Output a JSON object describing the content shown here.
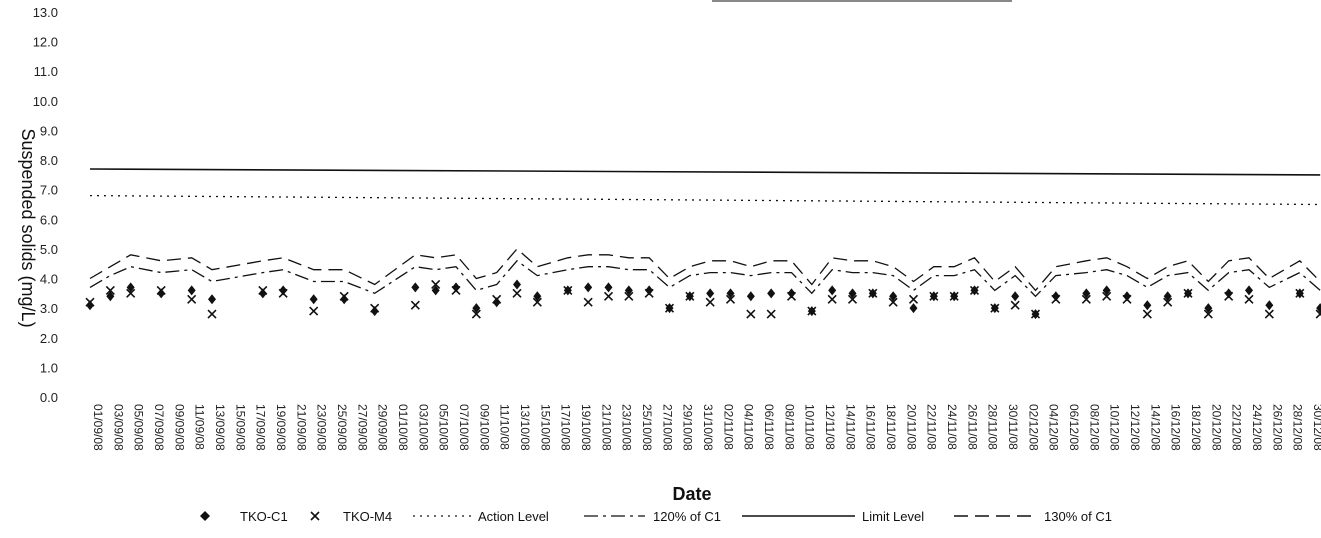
{
  "chart_data": {
    "type": "scatter",
    "xlabel": "Date",
    "ylabel": "Suspended solids (mg/L)",
    "ylim": [
      0,
      13
    ],
    "yticks": [
      "0.0",
      "1.0",
      "2.0",
      "3.0",
      "4.0",
      "5.0",
      "6.0",
      "7.0",
      "8.0",
      "9.0",
      "10.0",
      "11.0",
      "12.0",
      "13.0"
    ],
    "categories": [
      "01/09/08",
      "03/09/08",
      "05/09/08",
      "07/09/08",
      "09/09/08",
      "11/09/08",
      "13/09/08",
      "15/09/08",
      "17/09/08",
      "19/09/08",
      "21/09/08",
      "23/09/08",
      "25/09/08",
      "27/09/08",
      "29/09/08",
      "01/10/08",
      "03/10/08",
      "05/10/08",
      "07/10/08",
      "09/10/08",
      "11/10/08",
      "13/10/08",
      "15/10/08",
      "17/10/08",
      "19/10/08",
      "21/10/08",
      "23/10/08",
      "25/10/08",
      "27/10/08",
      "29/10/08",
      "31/10/08",
      "02/11/08",
      "04/11/08",
      "06/11/08",
      "08/11/08",
      "10/11/08",
      "12/11/08",
      "14/11/08",
      "16/11/08",
      "18/11/08",
      "20/11/08",
      "22/11/08",
      "24/11/08",
      "26/11/08",
      "28/11/08",
      "30/11/08",
      "02/12/08",
      "04/12/08",
      "06/12/08",
      "08/12/08",
      "10/12/08",
      "12/12/08",
      "14/12/08",
      "16/12/08",
      "18/12/08",
      "20/12/08",
      "22/12/08",
      "24/12/08",
      "26/12/08",
      "28/12/08",
      "30/12/08"
    ],
    "grid": false,
    "legend_position": "bottom",
    "legend": [
      "TKO-C1",
      "TKO-M4",
      "Action Level",
      "120% of C1",
      "Limit Level",
      "130% of C1"
    ],
    "series": [
      {
        "name": "TKO-C1",
        "marker": "diamond",
        "x": [
          0,
          1,
          2,
          3.5,
          5,
          6,
          8.5,
          9.5,
          11,
          12.5,
          14,
          16,
          17,
          18,
          19,
          20,
          21,
          22,
          23.5,
          24.5,
          25.5,
          26.5,
          27.5,
          28.5,
          29.5,
          30.5,
          31.5,
          32.5,
          33.5,
          34.5,
          35.5,
          36.5,
          37.5,
          38.5,
          39.5,
          40.5,
          41.5,
          42.5,
          43.5,
          44.5,
          45.5,
          46.5,
          47.5,
          49,
          50,
          51,
          52,
          53,
          54,
          55,
          56,
          57,
          58,
          59.5,
          60.5
        ],
        "values": [
          3.1,
          3.4,
          3.7,
          3.5,
          3.6,
          3.3,
          3.5,
          3.6,
          3.3,
          3.3,
          2.9,
          3.7,
          3.6,
          3.7,
          3.0,
          3.2,
          3.8,
          3.4,
          3.6,
          3.7,
          3.7,
          3.6,
          3.6,
          3.0,
          3.4,
          3.5,
          3.5,
          3.4,
          3.5,
          3.5,
          2.9,
          3.6,
          3.5,
          3.5,
          3.4,
          3.0,
          3.4,
          3.4,
          3.6,
          3.0,
          3.4,
          2.8,
          3.4,
          3.5,
          3.6,
          3.4,
          3.1,
          3.4,
          3.5,
          3.0,
          3.5,
          3.6,
          3.1,
          3.5,
          3.0
        ]
      },
      {
        "name": "TKO-M4",
        "marker": "x",
        "x": [
          0,
          1,
          2,
          3.5,
          5,
          6,
          8.5,
          9.5,
          11,
          12.5,
          14,
          16,
          17,
          18,
          19,
          20,
          21,
          22,
          23.5,
          24.5,
          25.5,
          26.5,
          27.5,
          28.5,
          29.5,
          30.5,
          31.5,
          32.5,
          33.5,
          34.5,
          35.5,
          36.5,
          37.5,
          38.5,
          39.5,
          40.5,
          41.5,
          42.5,
          43.5,
          44.5,
          45.5,
          46.5,
          47.5,
          49,
          50,
          51,
          52,
          53,
          54,
          55,
          56,
          57,
          58,
          59.5,
          60.5
        ],
        "values": [
          3.2,
          3.6,
          3.5,
          3.6,
          3.3,
          2.8,
          3.6,
          3.5,
          2.9,
          3.4,
          3.0,
          3.1,
          3.8,
          3.6,
          2.8,
          3.3,
          3.5,
          3.2,
          3.6,
          3.2,
          3.4,
          3.4,
          3.5,
          3.0,
          3.4,
          3.2,
          3.3,
          2.8,
          2.8,
          3.4,
          2.9,
          3.3,
          3.3,
          3.5,
          3.2,
          3.3,
          3.4,
          3.4,
          3.6,
          3.0,
          3.1,
          2.8,
          3.3,
          3.3,
          3.4,
          3.3,
          2.8,
          3.2,
          3.5,
          2.8,
          3.4,
          3.3,
          2.8,
          3.5,
          2.8
        ]
      },
      {
        "name": "Action Level",
        "style": "dotted",
        "x": [
          0,
          60.5
        ],
        "values": [
          6.8,
          6.5
        ]
      },
      {
        "name": "Limit Level",
        "style": "solid",
        "x": [
          0,
          60.5
        ],
        "values": [
          7.7,
          7.5
        ]
      },
      {
        "name": "120% of C1",
        "style": "dash-dot",
        "x": [
          0,
          1,
          2,
          3.5,
          5,
          6,
          8.5,
          9.5,
          11,
          12.5,
          14,
          16,
          17,
          18,
          19,
          20,
          21,
          22,
          23.5,
          24.5,
          25.5,
          26.5,
          27.5,
          28.5,
          29.5,
          30.5,
          31.5,
          32.5,
          33.5,
          34.5,
          35.5,
          36.5,
          37.5,
          38.5,
          39.5,
          40.5,
          41.5,
          42.5,
          43.5,
          44.5,
          45.5,
          46.5,
          47.5,
          49,
          50,
          51,
          52,
          53,
          54,
          55,
          56,
          57,
          58,
          59.5,
          60.5
        ],
        "values": [
          3.7,
          4.1,
          4.4,
          4.2,
          4.3,
          3.9,
          4.2,
          4.3,
          3.9,
          3.9,
          3.5,
          4.4,
          4.3,
          4.4,
          3.6,
          3.8,
          4.6,
          4.1,
          4.3,
          4.4,
          4.4,
          4.3,
          4.3,
          3.7,
          4.1,
          4.2,
          4.2,
          4.1,
          4.2,
          4.2,
          3.5,
          4.3,
          4.2,
          4.2,
          4.1,
          3.6,
          4.1,
          4.1,
          4.3,
          3.6,
          4.1,
          3.4,
          4.1,
          4.2,
          4.3,
          4.1,
          3.7,
          4.1,
          4.2,
          3.6,
          4.2,
          4.3,
          3.7,
          4.2,
          3.6
        ]
      },
      {
        "name": "130% of C1",
        "style": "dashed",
        "x": [
          0,
          1,
          2,
          3.5,
          5,
          6,
          8.5,
          9.5,
          11,
          12.5,
          14,
          16,
          17,
          18,
          19,
          20,
          21,
          22,
          23.5,
          24.5,
          25.5,
          26.5,
          27.5,
          28.5,
          29.5,
          30.5,
          31.5,
          32.5,
          33.5,
          34.5,
          35.5,
          36.5,
          37.5,
          38.5,
          39.5,
          40.5,
          41.5,
          42.5,
          43.5,
          44.5,
          45.5,
          46.5,
          47.5,
          49,
          50,
          51,
          52,
          53,
          54,
          55,
          56,
          57,
          58,
          59.5,
          60.5
        ],
        "values": [
          4.0,
          4.4,
          4.8,
          4.6,
          4.7,
          4.3,
          4.6,
          4.7,
          4.3,
          4.3,
          3.8,
          4.8,
          4.7,
          4.8,
          4.0,
          4.2,
          5.0,
          4.4,
          4.7,
          4.8,
          4.8,
          4.7,
          4.7,
          4.0,
          4.4,
          4.6,
          4.6,
          4.4,
          4.6,
          4.6,
          3.8,
          4.7,
          4.6,
          4.6,
          4.4,
          3.9,
          4.4,
          4.4,
          4.7,
          3.9,
          4.4,
          3.6,
          4.4,
          4.6,
          4.7,
          4.4,
          4.0,
          4.4,
          4.6,
          3.9,
          4.6,
          4.7,
          4.0,
          4.6,
          3.9
        ]
      }
    ]
  }
}
